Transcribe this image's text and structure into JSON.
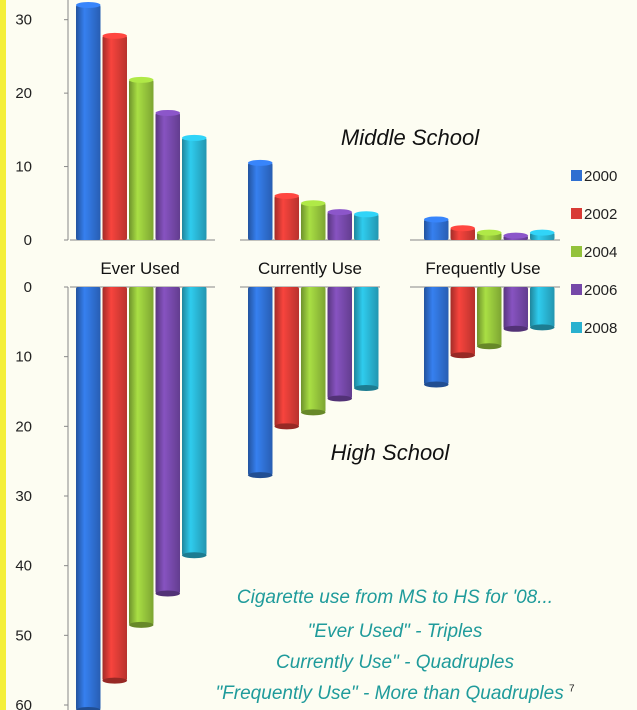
{
  "chart_data": {
    "type": "bar",
    "categories": [
      "Ever Used",
      "Currently Use",
      "Frequently Use"
    ],
    "legend": [
      "2000",
      "2002",
      "2004",
      "2006",
      "2008"
    ],
    "colors": [
      "#2f6fd1",
      "#d83b35",
      "#93c23b",
      "#7548a8",
      "#29b1cf"
    ],
    "panels": [
      {
        "title": "Middle School",
        "direction": "up",
        "ylim": [
          0,
          32
        ],
        "yticks": [
          "0",
          "10",
          "20",
          "30"
        ],
        "series": [
          {
            "name": "2000",
            "values": [
              32,
              10.5,
              2.8
            ]
          },
          {
            "name": "2002",
            "values": [
              27.8,
              6.0,
              1.6
            ]
          },
          {
            "name": "2004",
            "values": [
              21.8,
              5.0,
              1.0
            ]
          },
          {
            "name": "2006",
            "values": [
              17.3,
              3.8,
              0.6
            ]
          },
          {
            "name": "2008",
            "values": [
              13.9,
              3.5,
              1.0
            ]
          }
        ]
      },
      {
        "title": "High School",
        "direction": "down",
        "ylim": [
          0,
          60
        ],
        "yticks": [
          "0",
          "10",
          "20",
          "30",
          "40",
          "50",
          "60"
        ],
        "series": [
          {
            "name": "2000",
            "values": [
              62,
              27,
              14
            ]
          },
          {
            "name": "2002",
            "values": [
              56.5,
              20,
              9.8
            ]
          },
          {
            "name": "2004",
            "values": [
              48.5,
              18,
              8.5
            ]
          },
          {
            "name": "2006",
            "values": [
              44,
              16,
              6.0
            ]
          },
          {
            "name": "2008",
            "values": [
              38.5,
              14.5,
              5.8
            ]
          }
        ]
      }
    ]
  },
  "notes": {
    "line1": "Cigarette use from MS to HS for '08...",
    "line2": "\"Ever Used\" - Triples",
    "line3": "Currently Use\" - Quadruples",
    "line4": "\"Frequently Use\" - More than Quadruples",
    "page_number": "7"
  }
}
